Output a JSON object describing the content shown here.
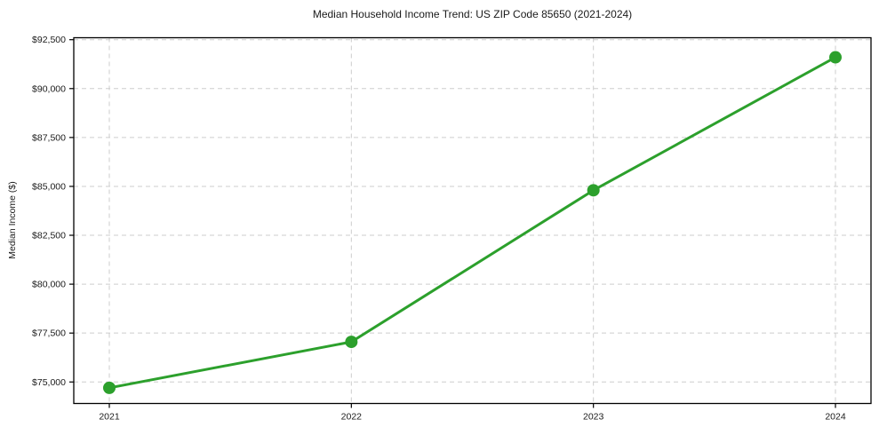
{
  "chart_data": {
    "type": "line",
    "title": "Median Household Income Trend: US ZIP Code 85650 (2021-2024)",
    "xlabel": "",
    "ylabel": "Median Income ($)",
    "x": [
      "2021",
      "2022",
      "2023",
      "2024"
    ],
    "values": [
      74700,
      77050,
      84800,
      91600
    ],
    "ylim": [
      73900,
      92600
    ],
    "yticks": [
      75000,
      77500,
      80000,
      82500,
      85000,
      87500,
      90000,
      92500
    ],
    "ytick_labels": [
      "$75,000",
      "$77,500",
      "$80,000",
      "$82,500",
      "$85,000",
      "$87,500",
      "$90,000",
      "$92,500"
    ],
    "grid": true,
    "grid_style": "dashed",
    "legend": "none",
    "marker": "circle",
    "line_color": "#2ca02c"
  },
  "colors": {
    "line": "#2ca02c",
    "grid": "#cdcdcd",
    "spine": "#000000",
    "text": "#1a1a1a",
    "background": "#ffffff"
  }
}
